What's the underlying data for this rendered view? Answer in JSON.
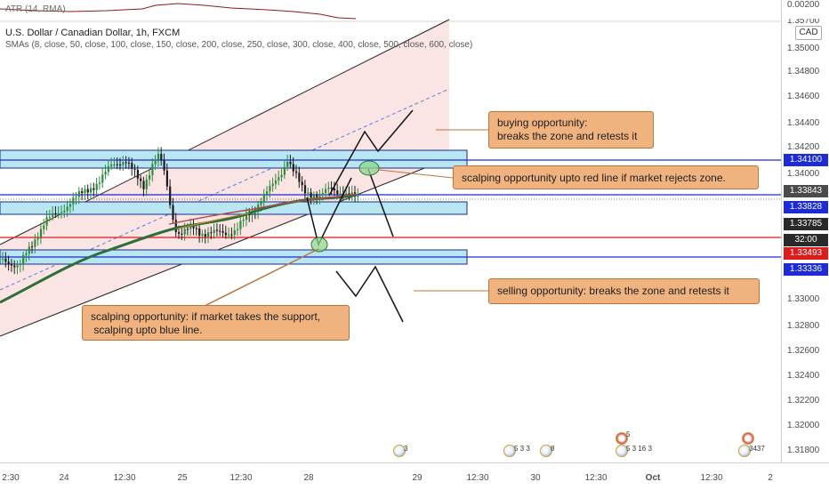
{
  "indicator": {
    "label": "ATR (14, RMA)",
    "value": "0.00200",
    "partial_value": "1.35700"
  },
  "symbol": {
    "title": "U.S. Dollar / Canadian Dollar, 1h, FXCM"
  },
  "sma": {
    "label": "SMAs (8, close, 50, close, 100, close, 150, close, 200, close, 250, close, 300, close, 400, close, 500, close, 600, close)"
  },
  "currency_button": "CAD",
  "price_ticks": [
    "1.35000",
    "1.34800",
    "1.34600",
    "1.34400",
    "1.34200",
    "1.34000",
    "1.33000",
    "1.32800",
    "1.32600",
    "1.32400",
    "1.32200",
    "1.32000",
    "1.31800"
  ],
  "price_labels": [
    {
      "value": "1.34100",
      "color": "#1c2bd6"
    },
    {
      "value": "1.33843",
      "color": "#4b4b4b"
    },
    {
      "value": "1.33828",
      "color": "#1c2bd6"
    },
    {
      "value": "1.33785",
      "color": "#2a2a2a"
    },
    {
      "value": "32:00",
      "color": "#2a2a2a"
    },
    {
      "value": "1.33493",
      "color": "#e01b1b"
    },
    {
      "value": "1.33336",
      "color": "#1c2bd6"
    }
  ],
  "time_ticks": [
    "2:30",
    "24",
    "12:30",
    "25",
    "12:30",
    "28",
    "29",
    "12:30",
    "30",
    "12:30",
    "Oct",
    "12:30",
    "2"
  ],
  "callouts": {
    "buying": [
      "buying opportunity:",
      "breaks the zone and retests it"
    ],
    "scalp_red": [
      "scalping opportunity upto red line if market rejects zone."
    ],
    "selling": [
      "selling opportunity: breaks the zone and retests it"
    ],
    "scalp_blue": [
      "scalping opportunity: if market takes the support,",
      " scalping upto blue line."
    ]
  },
  "events": [
    {
      "flag": "us",
      "count": "3"
    },
    {
      "flag": "us",
      "count": "5 3 3"
    },
    {
      "flag": "us",
      "count": "8"
    },
    {
      "flag": "ca",
      "count": "5"
    },
    {
      "flag": "us",
      "count": "5 3 16 3"
    },
    {
      "flag": "ca",
      "count": ""
    },
    {
      "flag": "us",
      "count": "3437"
    }
  ],
  "colors": {
    "zone_fill": "#b8e6f2",
    "zone_border": "#1a2a8a",
    "channel_fill": "#fbe4e4",
    "up_candle": "#2f8b3e",
    "down_candle": "#1c1c1c",
    "sma_green": "#2e6e3a",
    "sma_red": "#b24a4a",
    "resistance_blue": "#1c2bd6",
    "support_red": "#e01b1b",
    "callout": "#f0b27f"
  }
}
